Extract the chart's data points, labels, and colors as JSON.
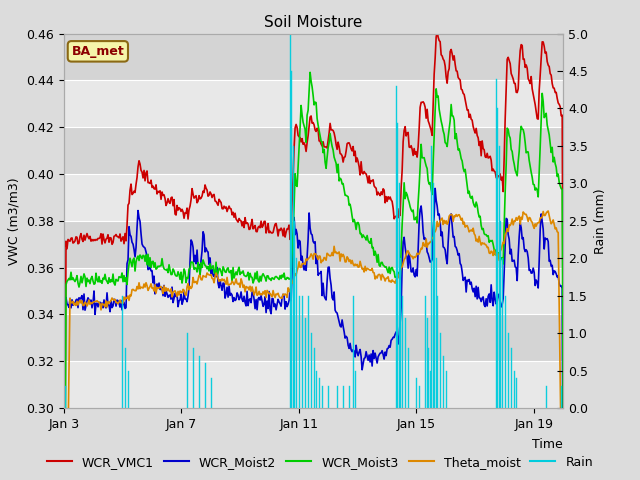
{
  "title": "Soil Moisture",
  "xlabel": "Time",
  "ylabel_left": "VWC (m3/m3)",
  "ylabel_right": "Rain (mm)",
  "ylim_left": [
    0.3,
    0.46
  ],
  "ylim_right": [
    0.0,
    5.0
  ],
  "yticks_left": [
    0.3,
    0.32,
    0.34,
    0.36,
    0.38,
    0.4,
    0.42,
    0.44,
    0.46
  ],
  "yticks_right": [
    0.0,
    0.5,
    1.0,
    1.5,
    2.0,
    2.5,
    3.0,
    3.5,
    4.0,
    4.5,
    5.0
  ],
  "xtick_positions": [
    0,
    4,
    8,
    12,
    16
  ],
  "xtick_labels": [
    "Jan 3",
    "Jan 7",
    "Jan 11",
    "Jan 15",
    "Jan 19"
  ],
  "xlim": [
    0,
    17
  ],
  "legend_labels": [
    "WCR_VMC1",
    "WCR_Moist2",
    "WCR_Moist3",
    "Theta_moist",
    "Rain"
  ],
  "line_colors": [
    "#cc0000",
    "#0000cc",
    "#00cc00",
    "#dd8800",
    "#00ccdd"
  ],
  "watermark_text": "BA_met",
  "watermark_fgcolor": "#8B0000",
  "watermark_bgcolor": "#f5f5aa",
  "watermark_edgecolor": "#8B6914",
  "bg_color": "#dcdcdc",
  "band_colors": [
    "#e8e8e8",
    "#d8d8d8"
  ],
  "grid_color": "#ffffff",
  "title_fontsize": 11,
  "axis_fontsize": 9,
  "legend_fontsize": 9
}
